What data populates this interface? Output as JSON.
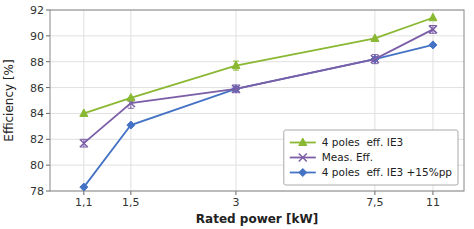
{
  "chart_data": {
    "type": "line",
    "xlabel": "Rated power [kW]",
    "ylabel": "Efficiency [%]",
    "log": "x",
    "x": [
      1.1,
      1.5,
      3,
      7.5,
      11
    ],
    "xlim": [
      0.88,
      13.5
    ],
    "xticks": [
      {
        "value": 1.1,
        "label": "1,1"
      },
      {
        "value": 1.5,
        "label": "1,5"
      },
      3,
      {
        "value": 7.5,
        "label": "7,5"
      },
      11
    ],
    "ylim": [
      78,
      92
    ],
    "yticks": [
      78,
      80,
      82,
      84,
      86,
      88,
      90,
      92
    ],
    "grid": true,
    "legend": "lower right",
    "series": [
      {
        "name": "4 poles  eff. IE3",
        "color": "#8ab832",
        "marker": "triangle",
        "values": [
          84.0,
          85.2,
          87.7,
          89.8,
          91.4
        ],
        "error": [
          0.0,
          0.0,
          0.35,
          0.0,
          0.0
        ]
      },
      {
        "name": "Meas. Eff.",
        "color": "#7b5ea7",
        "marker": "x",
        "values": [
          81.7,
          84.8,
          85.9,
          88.2,
          90.5
        ],
        "error": [
          0.3,
          0.4,
          0.3,
          0.35,
          0.3
        ]
      },
      {
        "name": "4 poles  eff. IE3 +15%pp",
        "color": "#4472c4",
        "marker": "diamond",
        "values": [
          78.3,
          83.1,
          85.9,
          88.2,
          89.3
        ]
      }
    ]
  }
}
